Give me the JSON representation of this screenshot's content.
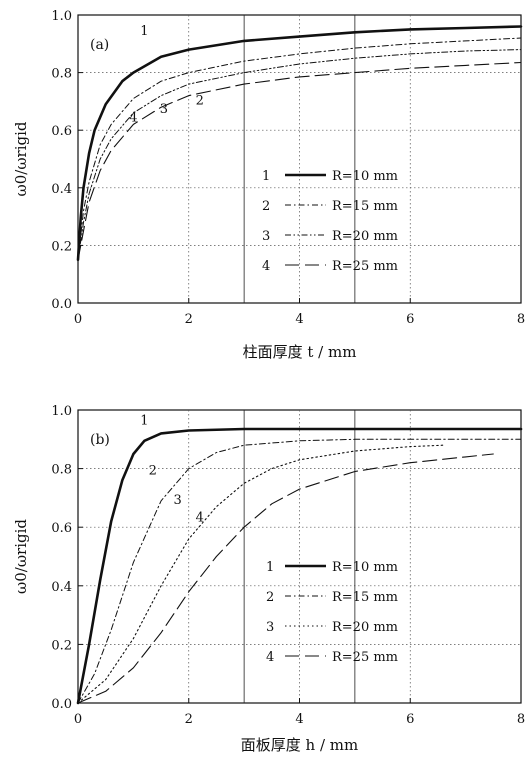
{
  "chart_data": [
    {
      "type": "line",
      "panel_label": "(a)",
      "xlabel": "柱面厚度 t / mm",
      "ylabel": "ω0/ωrigid",
      "xlim": [
        0,
        8
      ],
      "ylim": [
        0,
        1.0
      ],
      "x_ticks": [
        "0",
        "2",
        "4",
        "6",
        "8"
      ],
      "y_ticks": [
        "0.0",
        "0.2",
        "0.4",
        "0.6",
        "0.8",
        "1.0"
      ],
      "grid": "dotted",
      "legend_position": "center-right",
      "series": [
        {
          "name": "R=10 mm",
          "label": "1",
          "style": "solid-thick",
          "x": [
            0,
            0.05,
            0.1,
            0.2,
            0.3,
            0.5,
            0.8,
            1,
            1.5,
            2,
            3,
            4,
            5,
            6,
            7,
            8
          ],
          "y": [
            0.15,
            0.3,
            0.4,
            0.52,
            0.6,
            0.69,
            0.77,
            0.8,
            0.855,
            0.88,
            0.91,
            0.925,
            0.94,
            0.95,
            0.955,
            0.96
          ]
        },
        {
          "name": "R=15 mm",
          "label": "2",
          "style": "dash-dot",
          "x": [
            0,
            0.1,
            0.2,
            0.4,
            0.6,
            1,
            1.5,
            2,
            3,
            4,
            5,
            6,
            7,
            8
          ],
          "y": [
            0.15,
            0.32,
            0.42,
            0.55,
            0.62,
            0.71,
            0.77,
            0.8,
            0.84,
            0.865,
            0.885,
            0.9,
            0.91,
            0.92
          ]
        },
        {
          "name": "R=20 mm",
          "label": "3",
          "style": "dash-dot-dot",
          "x": [
            0,
            0.1,
            0.2,
            0.4,
            0.6,
            1,
            1.5,
            2,
            3,
            4,
            5,
            6,
            7,
            8
          ],
          "y": [
            0.15,
            0.28,
            0.38,
            0.5,
            0.57,
            0.66,
            0.72,
            0.76,
            0.8,
            0.83,
            0.85,
            0.865,
            0.875,
            0.88
          ]
        },
        {
          "name": "R=25 mm",
          "label": "4",
          "style": "long-dash",
          "x": [
            0,
            0.1,
            0.2,
            0.4,
            0.6,
            1,
            1.5,
            2,
            3,
            4,
            5,
            6,
            7,
            8
          ],
          "y": [
            0.15,
            0.25,
            0.35,
            0.46,
            0.53,
            0.62,
            0.68,
            0.72,
            0.76,
            0.785,
            0.8,
            0.815,
            0.825,
            0.835
          ]
        }
      ],
      "annotations": [
        {
          "text": "1",
          "x": 1.2,
          "y": 0.93
        },
        {
          "text": "2",
          "x": 2.2,
          "y": 0.69
        },
        {
          "text": "3",
          "x": 1.55,
          "y": 0.66
        },
        {
          "text": "4",
          "x": 1.0,
          "y": 0.63
        }
      ]
    },
    {
      "type": "line",
      "panel_label": "(b)",
      "xlabel": "面板厚度 h / mm",
      "ylabel": "ω0/ωrigid",
      "xlim": [
        0,
        8
      ],
      "ylim": [
        0,
        1.0
      ],
      "x_ticks": [
        "0",
        "2",
        "4",
        "6",
        "8"
      ],
      "y_ticks": [
        "0.0",
        "0.2",
        "0.4",
        "0.6",
        "0.8",
        "1.0"
      ],
      "grid": "dotted",
      "legend_position": "bottom-right",
      "series": [
        {
          "name": "R=10 mm",
          "label": "1",
          "style": "solid-thick",
          "x": [
            0,
            0.2,
            0.4,
            0.6,
            0.8,
            1.0,
            1.2,
            1.5,
            2,
            3,
            4,
            5,
            6,
            7,
            8
          ],
          "y": [
            0,
            0.2,
            0.42,
            0.62,
            0.76,
            0.85,
            0.895,
            0.92,
            0.93,
            0.935,
            0.935,
            0.935,
            0.935,
            0.935,
            0.935
          ]
        },
        {
          "name": "R=15 mm",
          "label": "2",
          "style": "dash-dot",
          "x": [
            0,
            0.3,
            0.6,
            1.0,
            1.5,
            2.0,
            2.5,
            3,
            4,
            5,
            6,
            7,
            8
          ],
          "y": [
            0,
            0.1,
            0.25,
            0.48,
            0.69,
            0.8,
            0.855,
            0.88,
            0.895,
            0.9,
            0.9,
            0.9,
            0.9
          ]
        },
        {
          "name": "R=20 mm",
          "label": "3",
          "style": "dotted",
          "x": [
            0,
            0.5,
            1.0,
            1.5,
            2.0,
            2.5,
            3,
            3.5,
            4,
            5,
            6,
            6.6
          ],
          "y": [
            0,
            0.08,
            0.22,
            0.4,
            0.56,
            0.67,
            0.75,
            0.8,
            0.83,
            0.86,
            0.875,
            0.88
          ]
        },
        {
          "name": "R=25 mm",
          "label": "4",
          "style": "long-dash",
          "x": [
            0,
            0.5,
            1.0,
            1.5,
            2.0,
            2.5,
            3,
            3.5,
            4,
            5,
            6,
            7,
            7.5
          ],
          "y": [
            0,
            0.04,
            0.12,
            0.24,
            0.38,
            0.5,
            0.6,
            0.68,
            0.73,
            0.79,
            0.82,
            0.84,
            0.85
          ]
        }
      ],
      "annotations": [
        {
          "text": "1",
          "x": 1.2,
          "y": 0.95
        },
        {
          "text": "2",
          "x": 1.35,
          "y": 0.78
        },
        {
          "text": "3",
          "x": 1.8,
          "y": 0.68
        },
        {
          "text": "4",
          "x": 2.2,
          "y": 0.62
        }
      ]
    }
  ]
}
